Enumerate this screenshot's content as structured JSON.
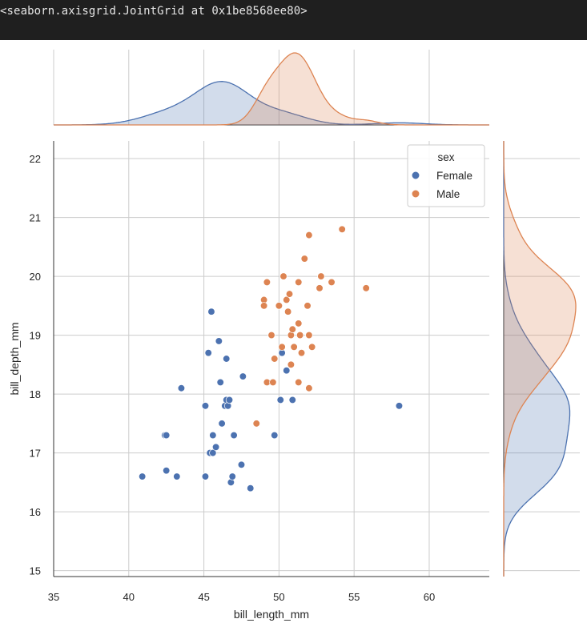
{
  "output": {
    "text": "<seaborn.axisgrid.JointGrid at 0x1be8568ee80>",
    "background": "#1f1f1f"
  },
  "chart_data": {
    "type": "scatter",
    "title": "",
    "xlabel": "bill_length_mm",
    "ylabel": "bill_depth_mm",
    "xlim": [
      35,
      64
    ],
    "ylim": [
      14.9,
      22.3
    ],
    "xticks": [
      35,
      40,
      45,
      50,
      55,
      60
    ],
    "yticks": [
      15,
      16,
      17,
      18,
      19,
      20,
      21,
      22
    ],
    "grid": true,
    "legend": {
      "title": "sex",
      "placement": "top-right"
    },
    "marginals": "kde",
    "series": [
      {
        "name": "Female",
        "color": "#4c72b0",
        "points": [
          [
            40.9,
            16.6
          ],
          [
            42.4,
            17.3
          ],
          [
            42.5,
            17.3
          ],
          [
            42.5,
            16.7
          ],
          [
            43.2,
            16.6
          ],
          [
            43.5,
            18.1
          ],
          [
            45.1,
            17.8
          ],
          [
            45.1,
            16.6
          ],
          [
            45.3,
            18.7
          ],
          [
            45.4,
            17.0
          ],
          [
            45.5,
            19.4
          ],
          [
            45.6,
            17.3
          ],
          [
            45.6,
            17.0
          ],
          [
            45.8,
            17.1
          ],
          [
            46.0,
            18.9
          ],
          [
            46.1,
            18.2
          ],
          [
            46.2,
            17.5
          ],
          [
            46.4,
            17.8
          ],
          [
            46.5,
            18.6
          ],
          [
            46.5,
            17.9
          ],
          [
            46.6,
            17.8
          ],
          [
            46.7,
            17.9
          ],
          [
            46.8,
            16.5
          ],
          [
            46.9,
            16.6
          ],
          [
            47.0,
            17.3
          ],
          [
            47.5,
            16.8
          ],
          [
            47.6,
            18.3
          ],
          [
            48.1,
            16.4
          ],
          [
            49.7,
            17.3
          ],
          [
            50.1,
            17.9
          ],
          [
            50.2,
            18.7
          ],
          [
            50.5,
            18.4
          ],
          [
            50.9,
            17.9
          ],
          [
            58.0,
            17.8
          ]
        ]
      },
      {
        "name": "Male",
        "color": "#dd8452",
        "points": [
          [
            48.5,
            17.5
          ],
          [
            49.0,
            19.6
          ],
          [
            49.0,
            19.5
          ],
          [
            49.2,
            18.2
          ],
          [
            49.2,
            19.9
          ],
          [
            49.5,
            19.0
          ],
          [
            49.6,
            18.2
          ],
          [
            49.7,
            18.6
          ],
          [
            50.0,
            19.5
          ],
          [
            50.2,
            18.8
          ],
          [
            50.3,
            20.0
          ],
          [
            50.5,
            19.6
          ],
          [
            50.6,
            19.4
          ],
          [
            50.7,
            19.7
          ],
          [
            50.8,
            18.5
          ],
          [
            50.8,
            19.0
          ],
          [
            50.9,
            19.1
          ],
          [
            51.0,
            18.8
          ],
          [
            51.3,
            19.2
          ],
          [
            51.3,
            18.2
          ],
          [
            51.3,
            19.9
          ],
          [
            51.4,
            19.0
          ],
          [
            51.5,
            18.7
          ],
          [
            51.7,
            20.3
          ],
          [
            51.9,
            19.5
          ],
          [
            52.0,
            18.1
          ],
          [
            52.0,
            19.0
          ],
          [
            52.0,
            20.7
          ],
          [
            52.2,
            18.8
          ],
          [
            52.7,
            19.8
          ],
          [
            52.8,
            20.0
          ],
          [
            53.5,
            19.9
          ],
          [
            54.2,
            20.8
          ],
          [
            55.8,
            19.8
          ]
        ]
      }
    ]
  }
}
